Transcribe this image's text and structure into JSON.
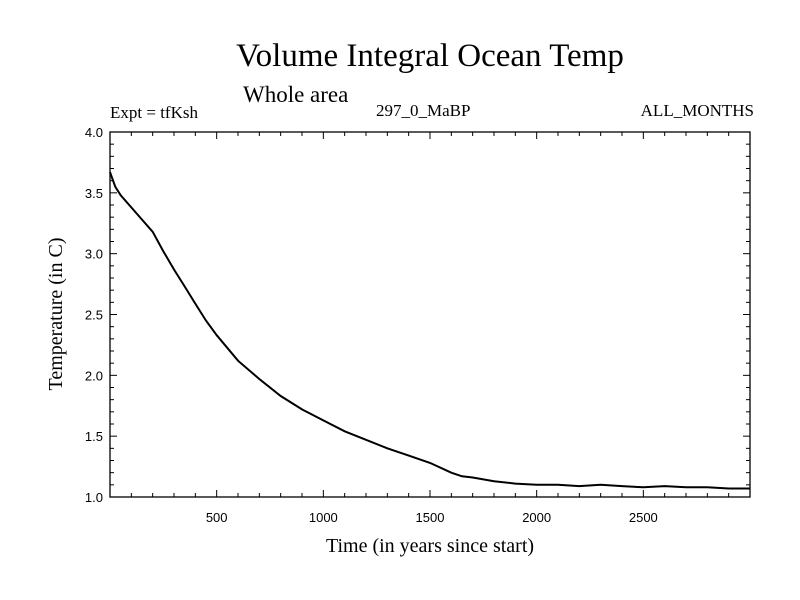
{
  "chart_data": {
    "type": "line",
    "title": "Volume Integral Ocean Temp",
    "subtitle": "Whole area",
    "annotations": {
      "experiment": "Expt = tfKsh",
      "center": "297_0_MaBP",
      "months": "ALL_MONTHS"
    },
    "xlabel": "Time (in years since start)",
    "ylabel": "Temperature (in C)",
    "xlim": [
      0,
      3000
    ],
    "ylim": [
      1.0,
      4.0
    ],
    "xticks": [
      500,
      1000,
      1500,
      2000,
      2500
    ],
    "yticks": [
      "1.0",
      "1.5",
      "2.0",
      "2.5",
      "3.0",
      "3.5",
      "4.0"
    ],
    "grid": false,
    "series": [
      {
        "name": "Volume integral ocean temperature",
        "x": [
          0,
          25,
          50,
          100,
          150,
          200,
          250,
          300,
          350,
          400,
          450,
          500,
          600,
          700,
          800,
          900,
          1000,
          1100,
          1200,
          1300,
          1400,
          1500,
          1600,
          1650,
          1700,
          1800,
          1900,
          2000,
          2100,
          2200,
          2300,
          2400,
          2500,
          2600,
          2700,
          2800,
          2900,
          3000
        ],
        "y": [
          3.67,
          3.55,
          3.48,
          3.38,
          3.28,
          3.18,
          3.02,
          2.87,
          2.73,
          2.59,
          2.45,
          2.33,
          2.12,
          1.97,
          1.83,
          1.72,
          1.63,
          1.54,
          1.47,
          1.4,
          1.34,
          1.28,
          1.2,
          1.17,
          1.16,
          1.13,
          1.11,
          1.1,
          1.1,
          1.09,
          1.1,
          1.09,
          1.08,
          1.09,
          1.08,
          1.08,
          1.07,
          1.07
        ]
      }
    ]
  }
}
